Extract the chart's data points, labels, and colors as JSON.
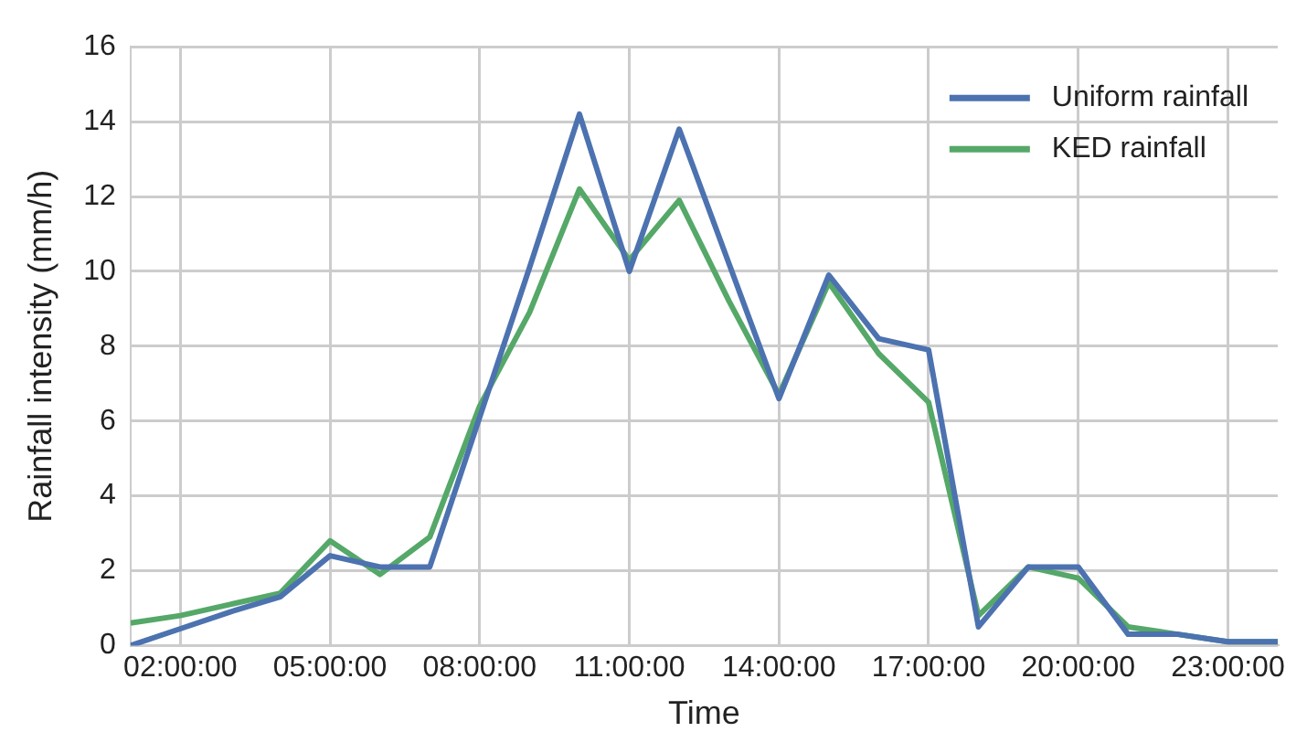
{
  "chart_data": {
    "type": "line",
    "xlabel": "Time",
    "ylabel": "Rainfall intensity (mm/h)",
    "x": [
      1,
      2,
      3,
      4,
      5,
      6,
      7,
      8,
      9,
      10,
      11,
      12,
      13,
      14,
      15,
      16,
      17,
      18,
      19,
      20,
      21,
      22,
      23,
      24
    ],
    "series": [
      {
        "name": "Uniform rainfall",
        "color": "#4c72b0",
        "values": [
          0,
          0.45,
          0.9,
          1.3,
          2.4,
          2.1,
          2.1,
          6.1,
          10.1,
          14.2,
          10.0,
          13.8,
          10.2,
          6.6,
          9.9,
          8.2,
          7.9,
          0.5,
          2.1,
          2.1,
          0.3,
          0.3,
          0.1,
          0.1
        ]
      },
      {
        "name": "KED rainfall",
        "color": "#55a868",
        "values": [
          0.6,
          0.8,
          1.1,
          1.4,
          2.8,
          1.9,
          2.9,
          6.4,
          8.9,
          12.2,
          10.3,
          11.9,
          9.2,
          6.7,
          9.7,
          7.8,
          6.5,
          0.8,
          2.1,
          1.8,
          0.5,
          0.3,
          0.1,
          0.1
        ]
      }
    ],
    "xlim": [
      1,
      24
    ],
    "xticks": [
      {
        "value": 2,
        "label": "02:00:00"
      },
      {
        "value": 5,
        "label": "05:00:00"
      },
      {
        "value": 8,
        "label": "08:00:00"
      },
      {
        "value": 11,
        "label": "11:00:00"
      },
      {
        "value": 14,
        "label": "14:00:00"
      },
      {
        "value": 17,
        "label": "17:00:00"
      },
      {
        "value": 20,
        "label": "20:00:00"
      },
      {
        "value": 23,
        "label": "23:00:00"
      }
    ],
    "ylim": [
      0,
      16
    ],
    "yticks": [
      0,
      2,
      4,
      6,
      8,
      10,
      12,
      14,
      16
    ],
    "grid": true,
    "legend": "top right",
    "marker": "none",
    "line_style": "solid"
  }
}
